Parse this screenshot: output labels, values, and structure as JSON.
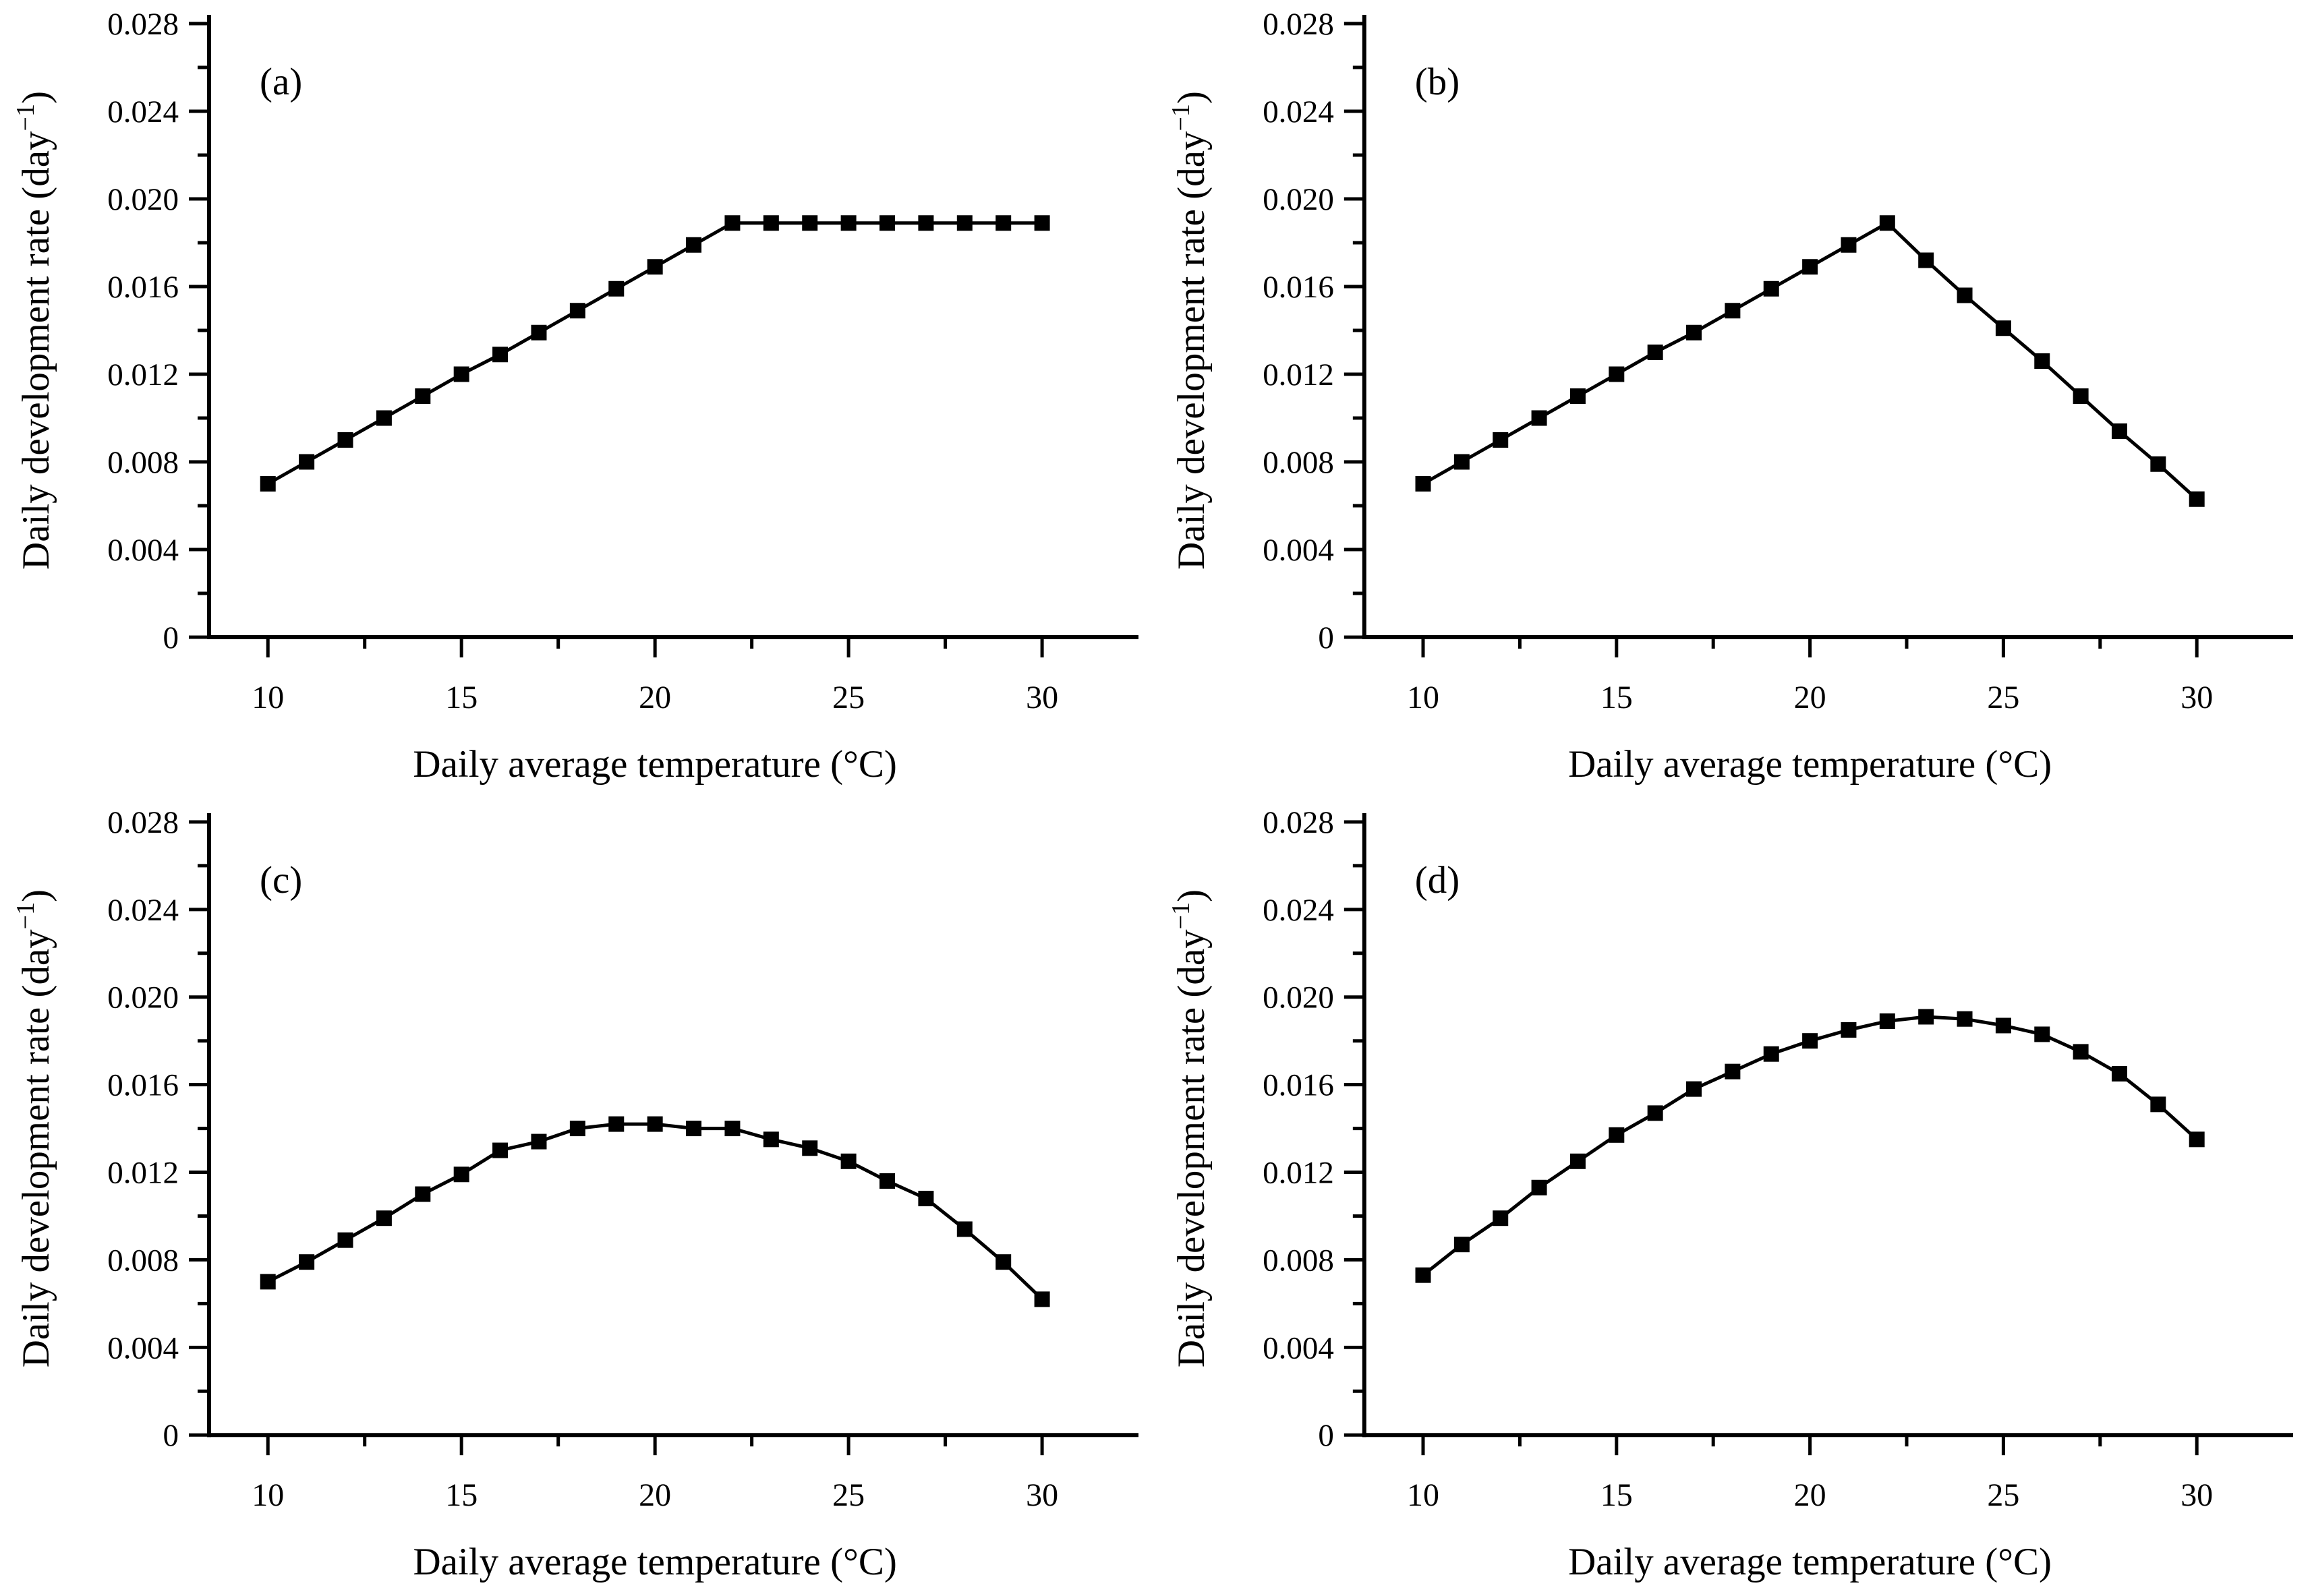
{
  "figure": {
    "background_color": "#ffffff",
    "ink_color": "#000000",
    "layout": "2x2-grid-of-panels"
  },
  "chart_data": [
    {
      "type": "line",
      "panel_label": "(a)",
      "xlabel": "Daily average temperature (°C)",
      "ylabel": "Daily development rate (day⁻¹)",
      "ylabel_parts": [
        {
          "text": "Daily development rate (day",
          "sup": false
        },
        {
          "text": "−1",
          "sup": true
        },
        {
          "text": ")",
          "sup": false
        }
      ],
      "xlim": [
        8.48,
        32.49
      ],
      "ylim": [
        0,
        0.028
      ],
      "x_major_ticks": [
        10,
        15,
        20,
        25,
        30
      ],
      "x_major_tick_labels": [
        "10",
        "15",
        "20",
        "25",
        "30"
      ],
      "x_minor_ticks": [
        12.5,
        17.5,
        22.5,
        27.5
      ],
      "y_major_ticks": [
        0,
        0.004,
        0.008,
        0.012,
        0.016,
        0.02,
        0.024,
        0.028
      ],
      "y_major_tick_labels": [
        "0",
        "0.004",
        "0.008",
        "0.012",
        "0.016",
        "0.020",
        "0.024",
        "0.028"
      ],
      "y_minor_ticks": [
        0.002,
        0.006,
        0.01,
        0.014,
        0.018,
        0.022,
        0.026
      ],
      "grid": false,
      "legend": null,
      "series": [
        {
          "name": "development-rate",
          "marker": "filled-square",
          "color": "#000000",
          "x": [
            10,
            11,
            12,
            13,
            14,
            15,
            16,
            17,
            18,
            19,
            20,
            21,
            22,
            23,
            24,
            25,
            26,
            27,
            28,
            29,
            30
          ],
          "y": [
            0.007,
            0.008,
            0.009,
            0.01,
            0.011,
            0.012,
            0.0129,
            0.0139,
            0.0149,
            0.0159,
            0.0169,
            0.0179,
            0.0189,
            0.0189,
            0.0189,
            0.0189,
            0.0189,
            0.0189,
            0.0189,
            0.0189,
            0.0189
          ]
        }
      ]
    },
    {
      "type": "line",
      "panel_label": "(b)",
      "xlabel": "Daily average temperature (°C)",
      "ylabel": "Daily development rate (day⁻¹)",
      "ylabel_parts": [
        {
          "text": "Daily development rate (day",
          "sup": false
        },
        {
          "text": "−1",
          "sup": true
        },
        {
          "text": ")",
          "sup": false
        }
      ],
      "xlim": [
        8.48,
        32.49
      ],
      "ylim": [
        0,
        0.028
      ],
      "x_major_ticks": [
        10,
        15,
        20,
        25,
        30
      ],
      "x_major_tick_labels": [
        "10",
        "15",
        "20",
        "25",
        "30"
      ],
      "x_minor_ticks": [
        12.5,
        17.5,
        22.5,
        27.5
      ],
      "y_major_ticks": [
        0,
        0.004,
        0.008,
        0.012,
        0.016,
        0.02,
        0.024,
        0.028
      ],
      "y_major_tick_labels": [
        "0",
        "0.004",
        "0.008",
        "0.012",
        "0.016",
        "0.020",
        "0.024",
        "0.028"
      ],
      "y_minor_ticks": [
        0.002,
        0.006,
        0.01,
        0.014,
        0.018,
        0.022,
        0.026
      ],
      "grid": false,
      "legend": null,
      "series": [
        {
          "name": "development-rate",
          "marker": "filled-square",
          "color": "#000000",
          "x": [
            10,
            11,
            12,
            13,
            14,
            15,
            16,
            17,
            18,
            19,
            20,
            21,
            22,
            23,
            24,
            25,
            26,
            27,
            28,
            29,
            30
          ],
          "y": [
            0.007,
            0.008,
            0.009,
            0.01,
            0.011,
            0.012,
            0.013,
            0.0139,
            0.0149,
            0.0159,
            0.0169,
            0.0179,
            0.0189,
            0.0172,
            0.0156,
            0.0141,
            0.0126,
            0.011,
            0.0094,
            0.0079,
            0.0063
          ]
        }
      ]
    },
    {
      "type": "line",
      "panel_label": "(c)",
      "xlabel": "Daily average temperature (°C)",
      "ylabel": "Daily development rate (day⁻¹)",
      "ylabel_parts": [
        {
          "text": "Daily development rate (day",
          "sup": false
        },
        {
          "text": "−1",
          "sup": true
        },
        {
          "text": ")",
          "sup": false
        }
      ],
      "xlim": [
        8.48,
        32.49
      ],
      "ylim": [
        0,
        0.028
      ],
      "x_major_ticks": [
        10,
        15,
        20,
        25,
        30
      ],
      "x_major_tick_labels": [
        "10",
        "15",
        "20",
        "25",
        "30"
      ],
      "x_minor_ticks": [
        12.5,
        17.5,
        22.5,
        27.5
      ],
      "y_major_ticks": [
        0,
        0.004,
        0.008,
        0.012,
        0.016,
        0.02,
        0.024,
        0.028
      ],
      "y_major_tick_labels": [
        "0",
        "0.004",
        "0.008",
        "0.012",
        "0.016",
        "0.020",
        "0.024",
        "0.028"
      ],
      "y_minor_ticks": [
        0.002,
        0.006,
        0.01,
        0.014,
        0.018,
        0.022,
        0.026
      ],
      "grid": false,
      "legend": null,
      "series": [
        {
          "name": "development-rate",
          "marker": "filled-square",
          "color": "#000000",
          "x": [
            10,
            11,
            12,
            13,
            14,
            15,
            16,
            17,
            18,
            19,
            20,
            21,
            22,
            23,
            24,
            25,
            26,
            27,
            28,
            29,
            30
          ],
          "y": [
            0.007,
            0.0079,
            0.0089,
            0.0099,
            0.011,
            0.0119,
            0.013,
            0.0134,
            0.014,
            0.0142,
            0.0142,
            0.014,
            0.014,
            0.0135,
            0.0131,
            0.0125,
            0.0116,
            0.0108,
            0.0094,
            0.0079,
            0.0062
          ]
        }
      ]
    },
    {
      "type": "line",
      "panel_label": "(d)",
      "xlabel": "Daily average temperature (°C)",
      "ylabel": "Daily development rate (day⁻¹)",
      "ylabel_parts": [
        {
          "text": "Daily development rate (day",
          "sup": false
        },
        {
          "text": "−1",
          "sup": true
        },
        {
          "text": ")",
          "sup": false
        }
      ],
      "xlim": [
        8.48,
        32.49
      ],
      "ylim": [
        0,
        0.028
      ],
      "x_major_ticks": [
        10,
        15,
        20,
        25,
        30
      ],
      "x_major_tick_labels": [
        "10",
        "15",
        "20",
        "25",
        "30"
      ],
      "x_minor_ticks": [
        12.5,
        17.5,
        22.5,
        27.5
      ],
      "y_major_ticks": [
        0,
        0.004,
        0.008,
        0.012,
        0.016,
        0.02,
        0.024,
        0.028
      ],
      "y_major_tick_labels": [
        "0",
        "0.004",
        "0.008",
        "0.012",
        "0.016",
        "0.020",
        "0.024",
        "0.028"
      ],
      "y_minor_ticks": [
        0.002,
        0.006,
        0.01,
        0.014,
        0.018,
        0.022,
        0.026
      ],
      "grid": false,
      "legend": null,
      "series": [
        {
          "name": "development-rate",
          "marker": "filled-square",
          "color": "#000000",
          "x": [
            10,
            11,
            12,
            13,
            14,
            15,
            16,
            17,
            18,
            19,
            20,
            21,
            22,
            23,
            24,
            25,
            26,
            27,
            28,
            29,
            30
          ],
          "y": [
            0.0073,
            0.0087,
            0.0099,
            0.0113,
            0.0125,
            0.0137,
            0.0147,
            0.0158,
            0.0166,
            0.0174,
            0.018,
            0.0185,
            0.0189,
            0.0191,
            0.019,
            0.0187,
            0.0183,
            0.0175,
            0.0165,
            0.0151,
            0.0135
          ]
        }
      ]
    }
  ]
}
